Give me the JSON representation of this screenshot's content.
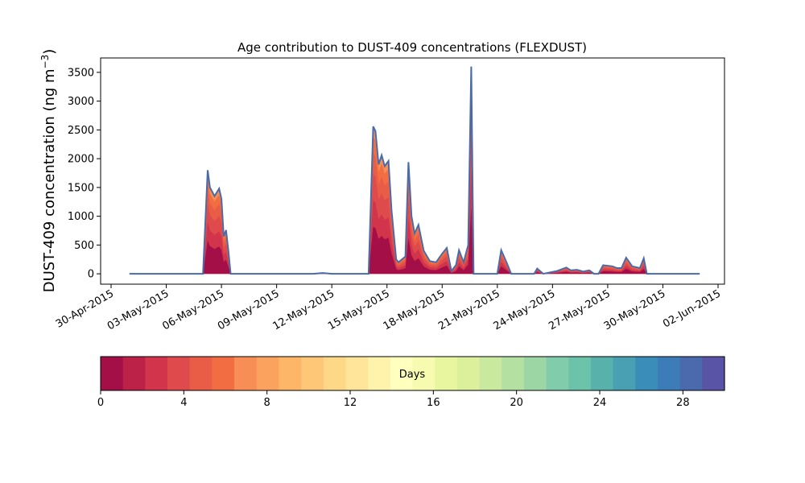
{
  "chart_data": {
    "type": "area",
    "title": "Age contribution to DUST-409 concentrations (FLEXDUST)",
    "ylabel": "DUST-409 concentration (ng m",
    "ylabel_sup": "−3",
    "ylabel_close": ")",
    "xlabel": "",
    "ylim": [
      -180,
      3750
    ],
    "xlim": [
      "2015-04-30",
      "2015-06-02"
    ],
    "grid": false,
    "yticks": [
      0,
      500,
      1000,
      1500,
      2000,
      2500,
      3000,
      3500
    ],
    "xticks": [
      "30-Apr-2015",
      "03-May-2015",
      "06-May-2015",
      "09-May-2015",
      "12-May-2015",
      "15-May-2015",
      "18-May-2015",
      "21-May-2015",
      "24-May-2015",
      "27-May-2015",
      "30-May-2015",
      "02-Jun-2015"
    ],
    "total_series": {
      "name": "",
      "points": [
        [
          "2015-05-01T00:00",
          0
        ],
        [
          "2015-05-05T00:00",
          0
        ],
        [
          "2015-05-05T03:00",
          900
        ],
        [
          "2015-05-05T06:00",
          1800
        ],
        [
          "2015-05-05T09:00",
          1500
        ],
        [
          "2015-05-05T15:00",
          1350
        ],
        [
          "2015-05-05T21:00",
          1480
        ],
        [
          "2015-05-06T00:00",
          1300
        ],
        [
          "2015-05-06T03:00",
          650
        ],
        [
          "2015-05-06T06:00",
          760
        ],
        [
          "2015-05-06T09:00",
          400
        ],
        [
          "2015-05-06T12:00",
          0
        ],
        [
          "2015-05-11T00:00",
          0
        ],
        [
          "2015-05-11T12:00",
          15
        ],
        [
          "2015-05-12T00:00",
          0
        ],
        [
          "2015-05-13T12:00",
          0
        ],
        [
          "2015-05-14T00:00",
          0
        ],
        [
          "2015-05-14T06:00",
          2560
        ],
        [
          "2015-05-14T09:00",
          2480
        ],
        [
          "2015-05-14T13:00",
          1900
        ],
        [
          "2015-05-14T17:00",
          2060
        ],
        [
          "2015-05-14T21:00",
          1870
        ],
        [
          "2015-05-15T02:00",
          1960
        ],
        [
          "2015-05-15T06:00",
          1100
        ],
        [
          "2015-05-15T12:00",
          250
        ],
        [
          "2015-05-15T15:00",
          200
        ],
        [
          "2015-05-16T00:00",
          300
        ],
        [
          "2015-05-16T04:00",
          1940
        ],
        [
          "2015-05-16T08:00",
          1000
        ],
        [
          "2015-05-16T12:00",
          700
        ],
        [
          "2015-05-16T17:00",
          850
        ],
        [
          "2015-05-17T00:00",
          400
        ],
        [
          "2015-05-17T08:00",
          220
        ],
        [
          "2015-05-17T16:00",
          200
        ],
        [
          "2015-05-18T00:00",
          350
        ],
        [
          "2015-05-18T06:00",
          450
        ],
        [
          "2015-05-18T12:00",
          50
        ],
        [
          "2015-05-18T18:00",
          150
        ],
        [
          "2015-05-18T22:00",
          410
        ],
        [
          "2015-05-19T04:00",
          200
        ],
        [
          "2015-05-19T10:00",
          500
        ],
        [
          "2015-05-19T14:00",
          3600
        ],
        [
          "2015-05-19T17:00",
          0
        ],
        [
          "2015-05-21T00:00",
          0
        ],
        [
          "2015-05-21T05:00",
          410
        ],
        [
          "2015-05-21T12:00",
          200
        ],
        [
          "2015-05-21T18:00",
          0
        ],
        [
          "2015-05-23T00:00",
          0
        ],
        [
          "2015-05-23T04:00",
          90
        ],
        [
          "2015-05-23T12:00",
          0
        ],
        [
          "2015-05-24T06:00",
          50
        ],
        [
          "2015-05-24T18:00",
          110
        ],
        [
          "2015-05-25T00:00",
          60
        ],
        [
          "2015-05-25T08:00",
          70
        ],
        [
          "2015-05-25T16:00",
          40
        ],
        [
          "2015-05-26T00:00",
          60
        ],
        [
          "2015-05-26T06:00",
          0
        ],
        [
          "2015-05-26T12:00",
          0
        ],
        [
          "2015-05-26T18:00",
          150
        ],
        [
          "2015-05-27T06:00",
          130
        ],
        [
          "2015-05-27T12:00",
          100
        ],
        [
          "2015-05-27T18:00",
          100
        ],
        [
          "2015-05-28T00:00",
          280
        ],
        [
          "2015-05-28T08:00",
          130
        ],
        [
          "2015-05-28T18:00",
          100
        ],
        [
          "2015-05-28T23:00",
          270
        ],
        [
          "2015-05-29T03:00",
          0
        ],
        [
          "2015-06-01T00:00",
          0
        ]
      ]
    },
    "colorbar": {
      "label": "Days",
      "min": 0,
      "max": 30,
      "ticks": [
        0,
        4,
        8,
        12,
        16,
        20,
        24,
        28
      ],
      "colors": [
        "#a50f47",
        "#bc2147",
        "#d1344b",
        "#df4a4c",
        "#e95d46",
        "#f36d43",
        "#f78e55",
        "#fba25e",
        "#fdb667",
        "#fec677",
        "#fed887",
        "#ffe599",
        "#fff2ab",
        "#ffffbe",
        "#f6fbb0",
        "#e8f6a0",
        "#dcf09c",
        "#c9e99e",
        "#b4e0a2",
        "#9bd6a4",
        "#81ccaa",
        "#6cc3aa",
        "#58b2ab",
        "#48a0b2",
        "#398db8",
        "#3c7db9",
        "#4b69ad",
        "#5954a6"
      ]
    }
  }
}
